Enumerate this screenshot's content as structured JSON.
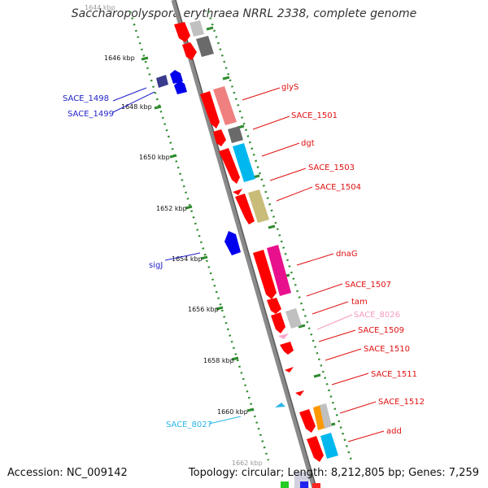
{
  "title": "Saccharopolyspora erythraea NRRL 2338, complete genome",
  "footer": {
    "accession": "Accession: NC_009142",
    "summary": "Topology: circular; Length: 8,212,805 bp; Genes: 7,259"
  },
  "ruler_ticks": [
    "1644 kbp",
    "1646 kbp",
    "1648 kbp",
    "1650 kbp",
    "1652 kbp",
    "1654 kbp",
    "1656 kbp",
    "1658 kbp",
    "1660 kbp",
    "1662 kbp"
  ],
  "gene_labels": [
    {
      "text": "SACE_1498",
      "color": "#1f1fc8"
    },
    {
      "text": "SACE_1499",
      "color": "#1f1fc8"
    },
    {
      "text": "sigJ",
      "color": "#1f1fc8"
    },
    {
      "text": "SACE_8027",
      "color": "#2ab6e6"
    },
    {
      "text": "glyS",
      "color": "#e01010"
    },
    {
      "text": "SACE_1501",
      "color": "#e01010"
    },
    {
      "text": "dgt",
      "color": "#e01010"
    },
    {
      "text": "SACE_1503",
      "color": "#e01010"
    },
    {
      "text": "SACE_1504",
      "color": "#e01010"
    },
    {
      "text": "dnaG",
      "color": "#e01010"
    },
    {
      "text": "SACE_1507",
      "color": "#e01010"
    },
    {
      "text": "tam",
      "color": "#e01010"
    },
    {
      "text": "SACE_8026",
      "color": "#f59ac0"
    },
    {
      "text": "SACE_1509",
      "color": "#e01010"
    },
    {
      "text": "SACE_1510",
      "color": "#e01010"
    },
    {
      "text": "SACE_1511",
      "color": "#e01010"
    },
    {
      "text": "SACE_1512",
      "color": "#e01010"
    },
    {
      "text": "add",
      "color": "#e01010"
    }
  ],
  "colors": {
    "backbone": "#8a8a8a",
    "gc_dots": "#2e8b2e",
    "forward_cds": "#ff0000",
    "reverse_cds": "#0000ee",
    "rrna_gray": "#b8b8b8",
    "dark_gray": "#6a6a6a",
    "salmon": "#f08080",
    "cyan": "#00b8ee",
    "khaki": "#c8bc78",
    "magenta": "#e8108c",
    "orange": "#ff9900",
    "pink": "#f7a8cc"
  }
}
